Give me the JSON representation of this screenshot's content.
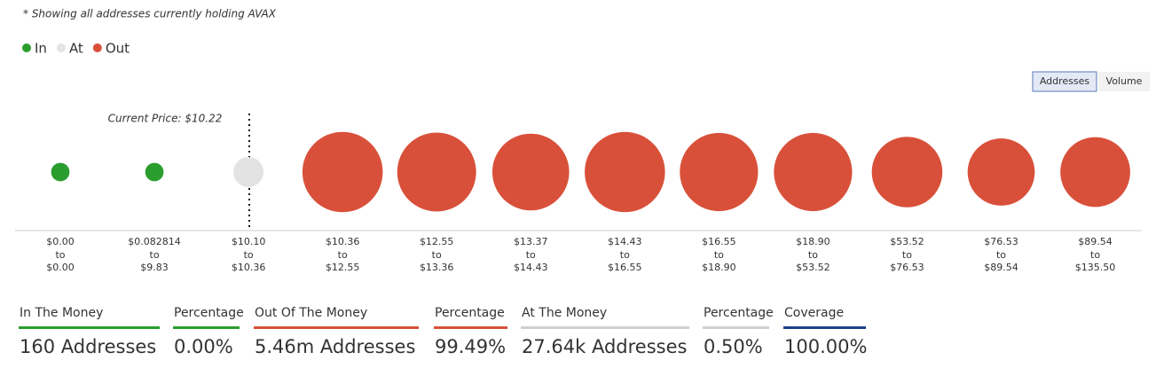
{
  "note": "* Showing all addresses currently holding AVAX",
  "buttons": [
    "Addresses",
    "Volume"
  ],
  "chart_data": {
    "type": "bubble",
    "annotation": "Current Price: $10.22",
    "separator": "to",
    "categories": [
      {
        "from": "$0.00",
        "to": "$0.00"
      },
      {
        "from": "$0.082814",
        "to": "$9.83"
      },
      {
        "from": "$10.10",
        "to": "$10.36"
      },
      {
        "from": "$10.36",
        "to": "$12.55"
      },
      {
        "from": "$12.55",
        "to": "$13.36"
      },
      {
        "from": "$13.37",
        "to": "$14.43"
      },
      {
        "from": "$14.43",
        "to": "$16.55"
      },
      {
        "from": "$16.55",
        "to": "$18.90"
      },
      {
        "from": "$18.90",
        "to": "$53.52"
      },
      {
        "from": "$53.52",
        "to": "$76.53"
      },
      {
        "from": "$76.53",
        "to": "$89.54"
      },
      {
        "from": "$89.54",
        "to": "$135.50"
      }
    ],
    "series": [
      {
        "name": "In",
        "color": "#2a9d2e",
        "values": [
          80,
          80,
          null,
          null,
          null,
          null,
          null,
          null,
          null,
          null,
          null,
          null
        ]
      },
      {
        "name": "At",
        "color": "#e3e3e3",
        "values": [
          null,
          null,
          27640,
          null,
          null,
          null,
          null,
          null,
          null,
          null,
          null,
          null
        ]
      },
      {
        "name": "Out",
        "color": "#d9503a",
        "values": [
          null,
          null,
          null,
          705000,
          674000,
          629000,
          705000,
          659000,
          659000,
          503000,
          439000,
          489000
        ]
      }
    ]
  },
  "stats": [
    {
      "label": "In The Money",
      "value": "160 Addresses",
      "color": "#2a9d2e"
    },
    {
      "label": "Percentage",
      "value": "0.00%",
      "color": "#2a9d2e"
    },
    {
      "label": "Out Of The Money",
      "value": "5.46m Addresses",
      "color": "#d9503a"
    },
    {
      "label": "Percentage",
      "value": "99.49%",
      "color": "#d9503a"
    },
    {
      "label": "At The Money",
      "value": "27.64k Addresses",
      "color": "#d0d0d0"
    },
    {
      "label": "Percentage",
      "value": "0.50%",
      "color": "#d0d0d0"
    },
    {
      "label": "Coverage",
      "value": "100.00%",
      "color": "#1f3f8f"
    }
  ]
}
